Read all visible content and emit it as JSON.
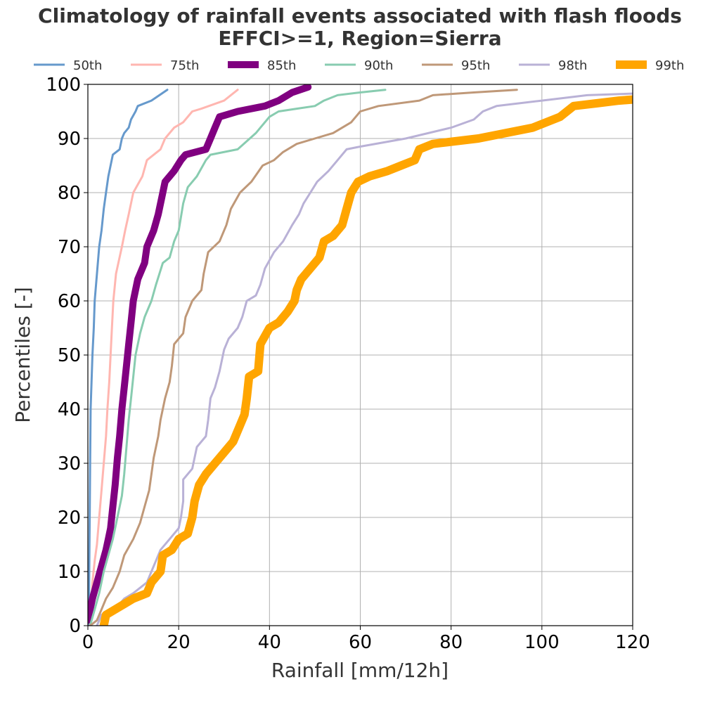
{
  "chart_data": {
    "type": "line",
    "title_line1": "Climatology of rainfall events associated with flash floods",
    "title_line2": "EFFCI>=1, Region=Sierra",
    "xlabel": "Rainfall [mm/12h]",
    "ylabel": "Percentiles [-]",
    "xlim": [
      0,
      120
    ],
    "ylim": [
      0,
      100
    ],
    "xticks": [
      0,
      20,
      40,
      60,
      80,
      100,
      120
    ],
    "yticks": [
      0,
      10,
      20,
      30,
      40,
      50,
      60,
      70,
      80,
      90,
      100
    ],
    "grid": true,
    "legend_position": "top",
    "series": [
      {
        "name": "50th",
        "color": "#6699cc",
        "width": 3,
        "points": [
          [
            0.2,
            0
          ],
          [
            0.3,
            10
          ],
          [
            0.4,
            20
          ],
          [
            0.5,
            30
          ],
          [
            0.6,
            40
          ],
          [
            0.8,
            45
          ],
          [
            1.0,
            50
          ],
          [
            1.3,
            55
          ],
          [
            1.5,
            60
          ],
          [
            2,
            65
          ],
          [
            2.5,
            70
          ],
          [
            3,
            73
          ],
          [
            3.5,
            77
          ],
          [
            4,
            80
          ],
          [
            4.5,
            83
          ],
          [
            5,
            85
          ],
          [
            5.5,
            87
          ],
          [
            7,
            88
          ],
          [
            7.5,
            90
          ],
          [
            8,
            91
          ],
          [
            9,
            92
          ],
          [
            9.5,
            93.5
          ],
          [
            10.5,
            95
          ],
          [
            11,
            96
          ],
          [
            14,
            97
          ],
          [
            17.5,
            99
          ]
        ]
      },
      {
        "name": "75th",
        "color": "#ffb6b0",
        "width": 3,
        "points": [
          [
            0.5,
            0
          ],
          [
            1,
            8
          ],
          [
            1.5,
            12
          ],
          [
            2,
            15
          ],
          [
            2.5,
            20
          ],
          [
            3,
            25
          ],
          [
            3.5,
            30
          ],
          [
            4,
            35
          ],
          [
            4.3,
            40
          ],
          [
            4.7,
            45
          ],
          [
            5,
            50
          ],
          [
            5.3,
            55
          ],
          [
            5.6,
            60
          ],
          [
            6.2,
            65
          ],
          [
            7.5,
            70
          ],
          [
            8.2,
            73
          ],
          [
            9,
            76
          ],
          [
            10,
            80
          ],
          [
            12,
            83
          ],
          [
            13,
            86
          ],
          [
            16,
            88
          ],
          [
            17,
            90
          ],
          [
            19,
            92
          ],
          [
            21,
            93
          ],
          [
            23,
            95
          ],
          [
            25,
            95.5
          ],
          [
            30,
            97
          ],
          [
            33,
            99
          ]
        ]
      },
      {
        "name": "85th",
        "color": "#800080",
        "width": 10,
        "points": [
          [
            0,
            1
          ],
          [
            1,
            5
          ],
          [
            2,
            8
          ],
          [
            3,
            11
          ],
          [
            4,
            14
          ],
          [
            4.5,
            16
          ],
          [
            5,
            18
          ],
          [
            5.5,
            22
          ],
          [
            6,
            26
          ],
          [
            6.5,
            31
          ],
          [
            7,
            35
          ],
          [
            7.5,
            40
          ],
          [
            8,
            44
          ],
          [
            8.5,
            48
          ],
          [
            9,
            52
          ],
          [
            9.5,
            56
          ],
          [
            10,
            60
          ],
          [
            11,
            64
          ],
          [
            12.5,
            67
          ],
          [
            13,
            70
          ],
          [
            14.5,
            73
          ],
          [
            15.5,
            76
          ],
          [
            16.5,
            80
          ],
          [
            17,
            82
          ],
          [
            19,
            84
          ],
          [
            20.5,
            86
          ],
          [
            21.5,
            87
          ],
          [
            26,
            88
          ],
          [
            27,
            90
          ],
          [
            28,
            92
          ],
          [
            29,
            94
          ],
          [
            33,
            95
          ],
          [
            39,
            96
          ],
          [
            42,
            97
          ],
          [
            45,
            98.5
          ],
          [
            48.5,
            99.5
          ]
        ]
      },
      {
        "name": "90th",
        "color": "#88ccb0",
        "width": 3,
        "points": [
          [
            0.5,
            0
          ],
          [
            1.5,
            3
          ],
          [
            2.5,
            6
          ],
          [
            3.5,
            10
          ],
          [
            4.5,
            13
          ],
          [
            5.5,
            16
          ],
          [
            6.5,
            20
          ],
          [
            7.5,
            24
          ],
          [
            8,
            28
          ],
          [
            8.5,
            33
          ],
          [
            9,
            38
          ],
          [
            9.5,
            42
          ],
          [
            10,
            46
          ],
          [
            10.5,
            50
          ],
          [
            11.5,
            54
          ],
          [
            12.5,
            57
          ],
          [
            14,
            60
          ],
          [
            15,
            63
          ],
          [
            16.5,
            67
          ],
          [
            18,
            68
          ],
          [
            19,
            71
          ],
          [
            20,
            73
          ],
          [
            21,
            78
          ],
          [
            22,
            81
          ],
          [
            24,
            83
          ],
          [
            26,
            86
          ],
          [
            27,
            87
          ],
          [
            33,
            88
          ],
          [
            35,
            89.5
          ],
          [
            37,
            91
          ],
          [
            38,
            92
          ],
          [
            40,
            94
          ],
          [
            42,
            95
          ],
          [
            46,
            95.5
          ],
          [
            50,
            96
          ],
          [
            52,
            97
          ],
          [
            55,
            98
          ],
          [
            60,
            98.5
          ],
          [
            65.5,
            99
          ]
        ]
      },
      {
        "name": "95th",
        "color": "#bf9878",
        "width": 3,
        "points": [
          [
            0.5,
            0
          ],
          [
            2,
            1
          ],
          [
            3,
            3
          ],
          [
            4,
            5
          ],
          [
            5.5,
            7
          ],
          [
            7,
            10
          ],
          [
            8,
            13
          ],
          [
            10,
            16
          ],
          [
            11.5,
            19
          ],
          [
            12.5,
            22
          ],
          [
            13.5,
            25
          ],
          [
            14,
            28
          ],
          [
            14.5,
            31
          ],
          [
            15.5,
            35
          ],
          [
            16,
            38
          ],
          [
            17,
            42
          ],
          [
            18,
            45
          ],
          [
            18.5,
            48
          ],
          [
            19,
            52
          ],
          [
            21,
            54
          ],
          [
            21.5,
            57
          ],
          [
            23,
            60
          ],
          [
            25,
            62
          ],
          [
            25.5,
            65
          ],
          [
            26.5,
            69
          ],
          [
            29,
            71
          ],
          [
            30.5,
            74
          ],
          [
            31.5,
            77
          ],
          [
            33.5,
            80
          ],
          [
            36,
            82
          ],
          [
            38.5,
            85
          ],
          [
            41,
            86
          ],
          [
            43,
            87.5
          ],
          [
            46,
            89
          ],
          [
            50,
            90
          ],
          [
            54,
            91
          ],
          [
            58,
            93
          ],
          [
            60,
            95
          ],
          [
            64,
            96
          ],
          [
            73,
            97
          ],
          [
            76,
            98
          ],
          [
            85,
            98.5
          ],
          [
            94.5,
            99
          ]
        ]
      },
      {
        "name": "98th",
        "color": "#b9b1d6",
        "width": 3,
        "points": [
          [
            2,
            0
          ],
          [
            3,
            2
          ],
          [
            5,
            3
          ],
          [
            7,
            4
          ],
          [
            8,
            5
          ],
          [
            10,
            6
          ],
          [
            13,
            8
          ],
          [
            14,
            10
          ],
          [
            15,
            12
          ],
          [
            16,
            14
          ],
          [
            18,
            16
          ],
          [
            20,
            18
          ],
          [
            20.5,
            20
          ],
          [
            21,
            23
          ],
          [
            21,
            27
          ],
          [
            23,
            29
          ],
          [
            24,
            33
          ],
          [
            26,
            35
          ],
          [
            26.5,
            38
          ],
          [
            27,
            42
          ],
          [
            28,
            44
          ],
          [
            29,
            47
          ],
          [
            30,
            51
          ],
          [
            31,
            53
          ],
          [
            33,
            55
          ],
          [
            34,
            57
          ],
          [
            35,
            60
          ],
          [
            37,
            61
          ],
          [
            38,
            63
          ],
          [
            39,
            66
          ],
          [
            41,
            69
          ],
          [
            43,
            71
          ],
          [
            45,
            74
          ],
          [
            46.5,
            76
          ],
          [
            47.5,
            78
          ],
          [
            49,
            80
          ],
          [
            50.5,
            82
          ],
          [
            53,
            84
          ],
          [
            55,
            86
          ],
          [
            57,
            88
          ],
          [
            60,
            88.5
          ],
          [
            70,
            90
          ],
          [
            80,
            92
          ],
          [
            85,
            93.5
          ],
          [
            87,
            95
          ],
          [
            90,
            96
          ],
          [
            100,
            97
          ],
          [
            110,
            98
          ],
          [
            120,
            98.3
          ]
        ]
      },
      {
        "name": "99th",
        "color": "#ffa500",
        "width": 12,
        "points": [
          [
            3.5,
            0
          ],
          [
            4,
            2
          ],
          [
            6,
            3
          ],
          [
            8,
            4
          ],
          [
            10,
            5
          ],
          [
            13,
            6
          ],
          [
            14,
            8
          ],
          [
            16,
            10
          ],
          [
            16.5,
            13
          ],
          [
            18.5,
            14
          ],
          [
            20,
            16
          ],
          [
            22,
            17
          ],
          [
            23,
            20
          ],
          [
            23.5,
            23
          ],
          [
            24.5,
            26
          ],
          [
            26,
            28
          ],
          [
            28,
            30
          ],
          [
            30,
            32
          ],
          [
            32,
            34
          ],
          [
            33.5,
            37
          ],
          [
            34.5,
            39
          ],
          [
            35,
            42
          ],
          [
            35.5,
            46
          ],
          [
            37.5,
            47
          ],
          [
            38,
            52
          ],
          [
            40,
            55
          ],
          [
            42,
            56
          ],
          [
            44,
            58
          ],
          [
            45.5,
            60
          ],
          [
            46,
            62
          ],
          [
            47,
            64
          ],
          [
            49,
            66
          ],
          [
            51,
            68
          ],
          [
            52,
            71
          ],
          [
            54,
            72
          ],
          [
            56,
            74
          ],
          [
            57,
            77
          ],
          [
            58,
            80
          ],
          [
            59.5,
            82
          ],
          [
            62,
            83
          ],
          [
            66,
            84
          ],
          [
            69,
            85
          ],
          [
            72,
            86
          ],
          [
            73,
            88
          ],
          [
            76,
            89
          ],
          [
            86,
            90
          ],
          [
            98,
            92
          ],
          [
            104,
            94
          ],
          [
            107,
            96
          ],
          [
            112,
            96.5
          ],
          [
            117,
            97
          ],
          [
            120,
            97.2
          ]
        ]
      }
    ]
  }
}
